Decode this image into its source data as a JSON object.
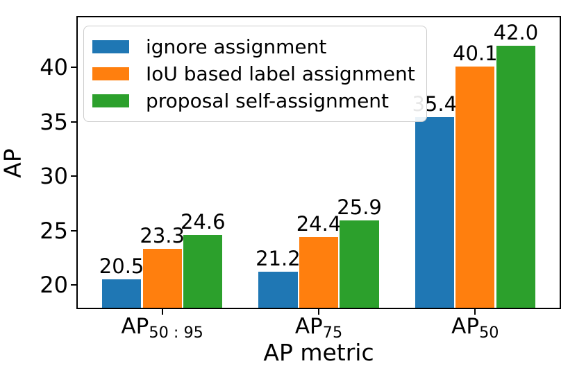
{
  "chart_data": {
    "type": "bar",
    "title": "",
    "xlabel": "AP metric",
    "ylabel": "AP",
    "categories": [
      {
        "base": "AP",
        "sub": "50 : 95"
      },
      {
        "base": "AP",
        "sub": "75"
      },
      {
        "base": "AP",
        "sub": "50"
      }
    ],
    "series": [
      {
        "name": "ignore assignment",
        "color": "#1f77b4",
        "values": [
          20.5,
          21.2,
          35.4
        ]
      },
      {
        "name": "IoU based label assignment",
        "color": "#ff7f0e",
        "values": [
          23.3,
          24.4,
          40.1
        ]
      },
      {
        "name": "proposal self-assignment",
        "color": "#2ca02c",
        "values": [
          24.6,
          25.9,
          42.0
        ]
      }
    ],
    "value_labels": [
      [
        "20.5",
        "21.2",
        "35.4"
      ],
      [
        "23.3",
        "24.4",
        "40.1"
      ],
      [
        "24.6",
        "25.9",
        "42.0"
      ]
    ],
    "yticks": [
      "20",
      "25",
      "30",
      "35",
      "40"
    ],
    "ylim": [
      17.9,
      44.6
    ],
    "xlim": [
      -0.54,
      2.54
    ],
    "bar_width_units": 0.25,
    "bar_offset_units": 0.26,
    "legend_position": "upper left",
    "grid": false,
    "axis_color": "#000000"
  }
}
